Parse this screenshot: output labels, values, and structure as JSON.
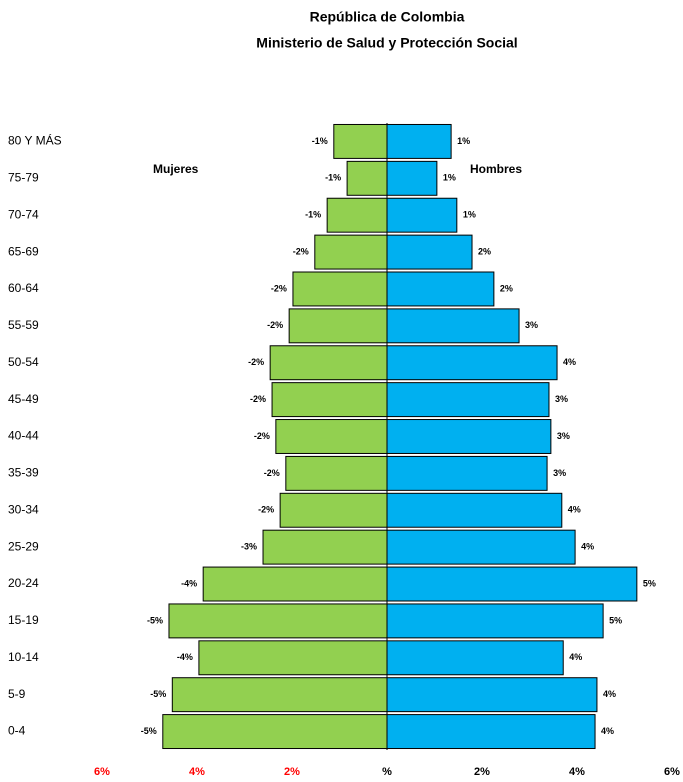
{
  "chart_data": {
    "type": "pyramid",
    "title": "República de Colombia",
    "subtitle": "Ministerio de Salud y Protección Social",
    "annotations": [
      "Mujeres",
      "Hombres"
    ],
    "categories": [
      "80 Y MÁS",
      "75-79",
      "70-74",
      "65-69",
      "60-64",
      "55-59",
      "50-54",
      "45-49",
      "40-44",
      "35-39",
      "30-34",
      "25-29",
      "20-24",
      "15-19",
      "10-14",
      "5-9",
      "0-4"
    ],
    "series": [
      {
        "name": "Mujeres",
        "color": "#92d050",
        "values": [
          -1.12,
          -0.84,
          -1.26,
          -1.52,
          -1.98,
          -2.06,
          -2.46,
          -2.42,
          -2.34,
          -2.13,
          -2.25,
          -2.61,
          -3.87,
          -4.59,
          -3.96,
          -4.52,
          -4.72
        ],
        "value_labels": [
          "-1%",
          "-1%",
          "-1%",
          "-2%",
          "-2%",
          "-2%",
          "-2%",
          "-2%",
          "-2%",
          "-2%",
          "-2%",
          "-3%",
          "-4%",
          "-5%",
          "-4%",
          "-5%",
          "-5%"
        ]
      },
      {
        "name": "Hombres",
        "color": "#00b0f0",
        "values": [
          1.35,
          1.05,
          1.47,
          1.79,
          2.25,
          2.78,
          3.58,
          3.41,
          3.45,
          3.37,
          3.68,
          3.96,
          5.26,
          4.55,
          3.71,
          4.42,
          4.38
        ],
        "value_labels": [
          "1%",
          "1%",
          "1%",
          "2%",
          "2%",
          "3%",
          "4%",
          "3%",
          "3%",
          "3%",
          "4%",
          "4%",
          "5%",
          "5%",
          "4%",
          "4%",
          "4%"
        ]
      }
    ],
    "xlim": [
      -6,
      6
    ],
    "xticks": [
      {
        "value": -6,
        "label": "6%"
      },
      {
        "value": -4,
        "label": "4%"
      },
      {
        "value": -2,
        "label": "2%"
      },
      {
        "value": 0,
        "label": "%"
      },
      {
        "value": 2,
        "label": "2%"
      },
      {
        "value": 4,
        "label": "4%"
      },
      {
        "value": 6,
        "label": "6%"
      }
    ],
    "xtick_label_colors": [
      "#ff0000",
      "#ff0000",
      "#ff0000",
      "#000000",
      "#000000",
      "#000000",
      "#000000"
    ]
  }
}
